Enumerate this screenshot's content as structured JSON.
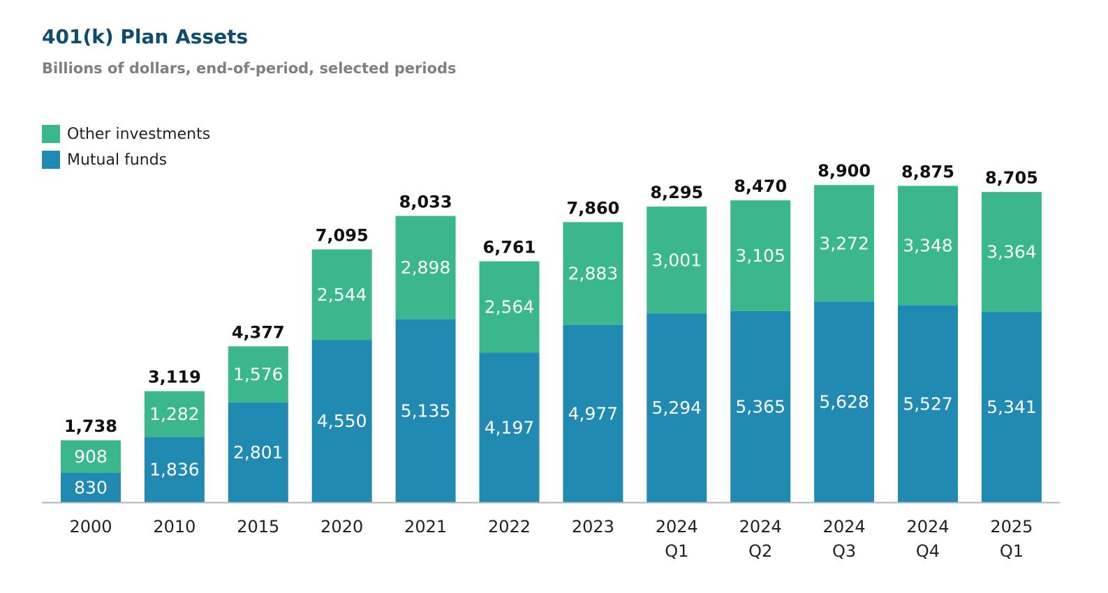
{
  "header": {
    "title": "401(k) Plan Assets",
    "subtitle": "Billions of dollars, end-of-period, selected periods"
  },
  "legend": {
    "items": [
      {
        "label": "Other investments",
        "color": "#3ab78c"
      },
      {
        "label": "Mutual funds",
        "color": "#218ab3"
      }
    ]
  },
  "chart_data": {
    "type": "bar",
    "stacked": true,
    "title": "401(k) Plan Assets",
    "subtitle": "Billions of dollars, end-of-period, selected periods",
    "categories": [
      [
        "2000"
      ],
      [
        "2010"
      ],
      [
        "2015"
      ],
      [
        "2020"
      ],
      [
        "2021"
      ],
      [
        "2022"
      ],
      [
        "2023"
      ],
      [
        "2024",
        "Q1"
      ],
      [
        "2024",
        "Q2"
      ],
      [
        "2024",
        "Q3"
      ],
      [
        "2024",
        "Q4"
      ],
      [
        "2025",
        "Q1"
      ]
    ],
    "series": [
      {
        "name": "Mutual funds",
        "color": "#218ab3",
        "values": [
          830,
          1836,
          2801,
          4550,
          5135,
          4197,
          4977,
          5294,
          5365,
          5628,
          5527,
          5341
        ],
        "labels": [
          "830",
          "1,836",
          "2,801",
          "4,550",
          "5,135",
          "4,197",
          "4,977",
          "5,294",
          "5,365",
          "5,628",
          "5,527",
          "5,341"
        ]
      },
      {
        "name": "Other investments",
        "color": "#3ab78c",
        "values": [
          908,
          1282,
          1576,
          2544,
          2898,
          2564,
          2883,
          3001,
          3105,
          3272,
          3348,
          3364
        ],
        "labels": [
          "908",
          "1,282",
          "1,576",
          "2,544",
          "2,898",
          "2,564",
          "2,883",
          "3,001",
          "3,105",
          "3,272",
          "3,348",
          "3,364"
        ]
      }
    ],
    "totals": [
      1738,
      3119,
      4377,
      7095,
      8033,
      6761,
      7860,
      8295,
      8470,
      8900,
      8875,
      8705
    ],
    "total_labels": [
      "1,738",
      "3,119",
      "4,377",
      "7,095",
      "8,033",
      "6,761",
      "7,860",
      "8,295",
      "8,470",
      "8,900",
      "8,875",
      "8,705"
    ],
    "ylim": [
      0,
      9000
    ],
    "grid": false,
    "legend_position": "top-left",
    "axis_color": "#b3b3b3"
  }
}
